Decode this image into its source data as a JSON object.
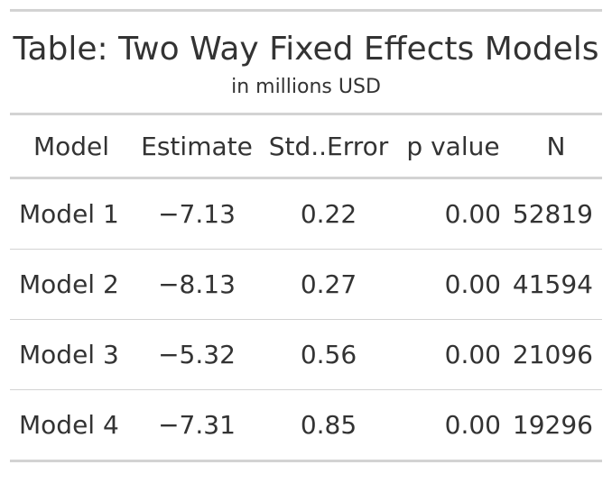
{
  "table": {
    "title": "Table: Two Way Fixed Effects Models",
    "subtitle": "in millions USD",
    "columns": [
      "Model",
      "Estimate",
      "Std..Error",
      "p value",
      "N"
    ],
    "rows": [
      [
        "Model 1",
        "−7.13",
        "0.22",
        "0.00",
        "52819"
      ],
      [
        "Model 2",
        "−8.13",
        "0.27",
        "0.00",
        "41594"
      ],
      [
        "Model 3",
        "−5.32",
        "0.56",
        "0.00",
        "21096"
      ],
      [
        "Model 4",
        "−7.31",
        "0.85",
        "0.00",
        "19296"
      ]
    ]
  }
}
